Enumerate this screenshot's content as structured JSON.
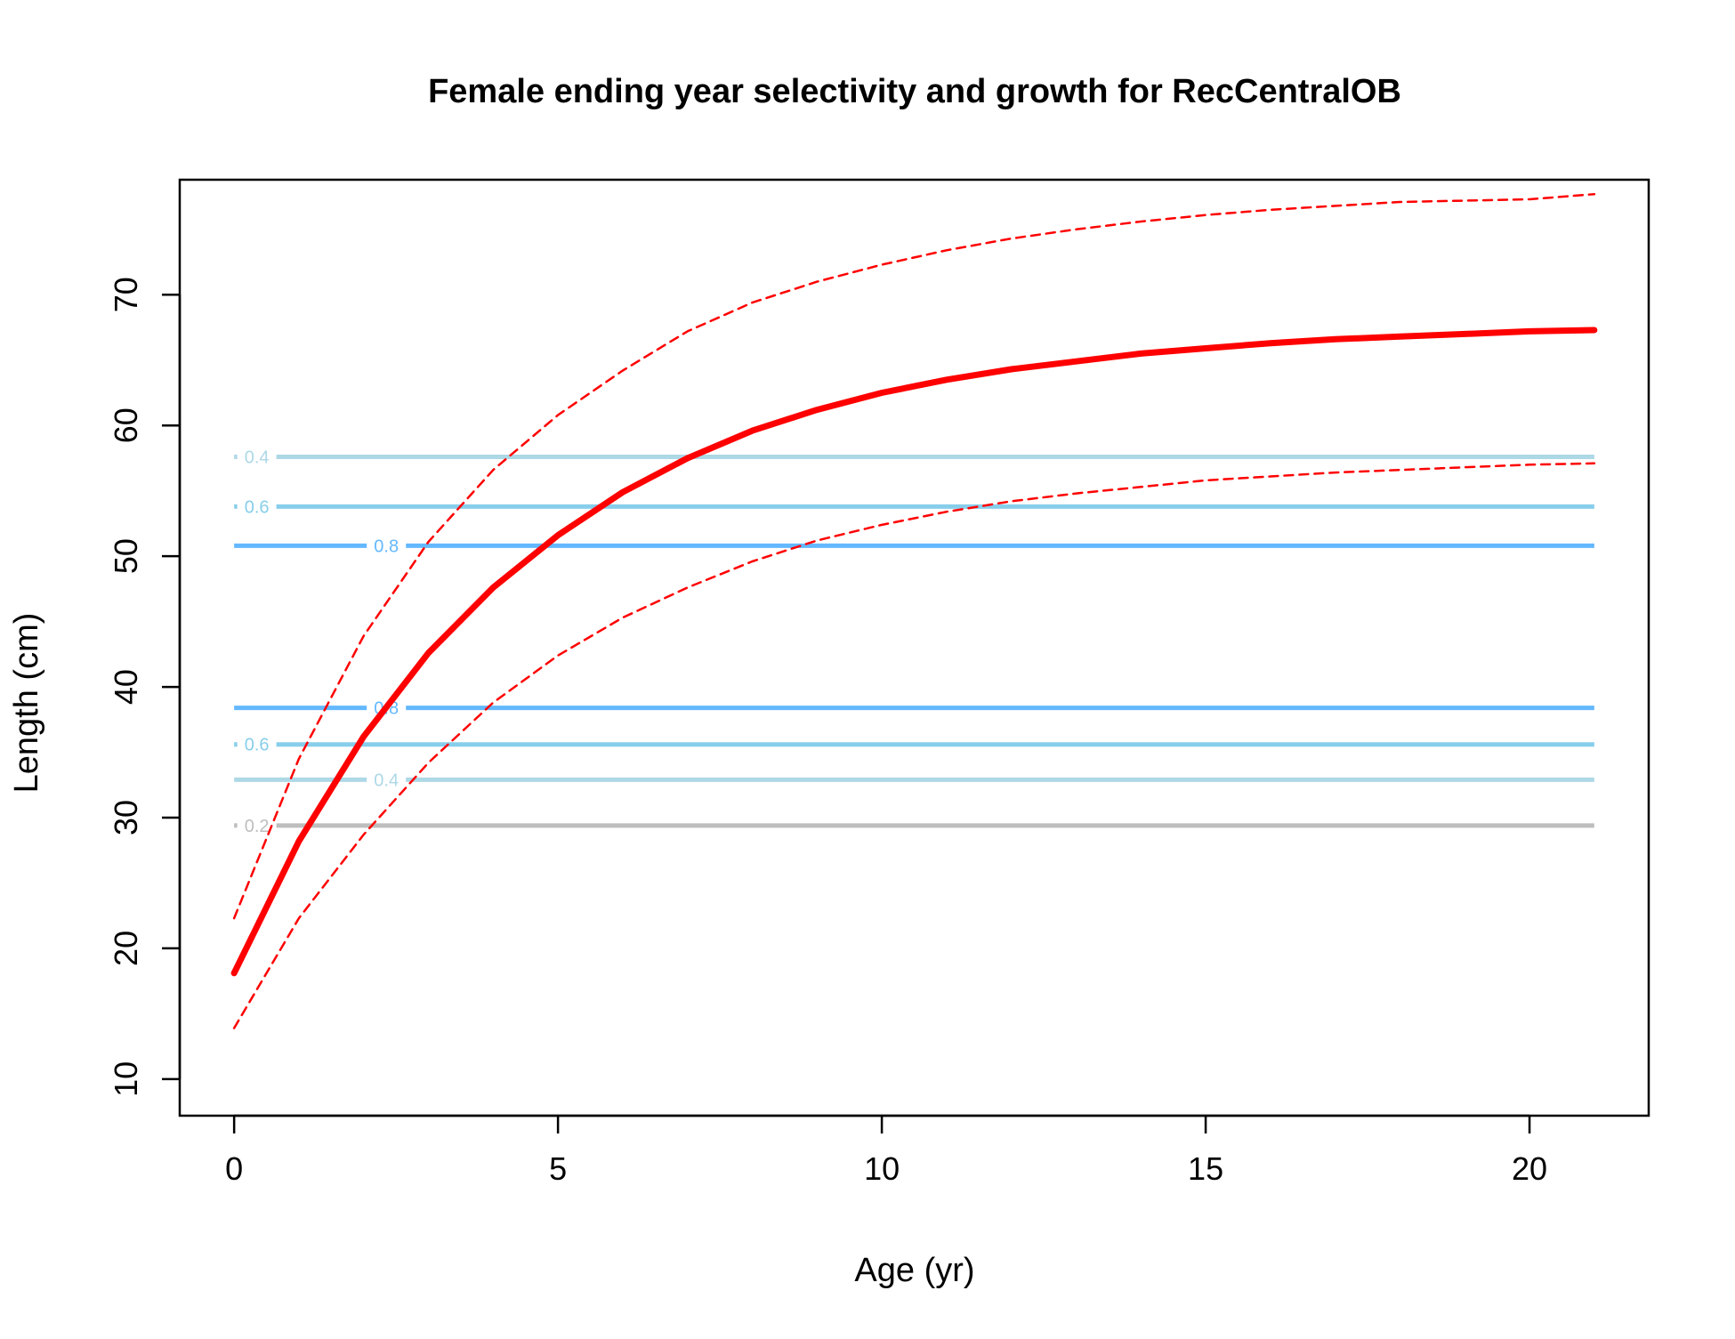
{
  "chart_data": {
    "type": "line",
    "title": "Female ending year selectivity and growth for RecCentralOB",
    "xlabel": "Age (yr)",
    "ylabel": "Length (cm)",
    "xlim": [
      -0.84,
      21.84
    ],
    "ylim": [
      7.2,
      78.8
    ],
    "xticks": [
      0,
      5,
      10,
      15,
      20
    ],
    "yticks": [
      10,
      20,
      30,
      40,
      50,
      60,
      70
    ],
    "grid": false,
    "colors": {
      "growth": "#ff0000",
      "contour_0.2": "#bebebe",
      "contour_0.4": "#add8e6",
      "contour_0.6": "#87ceeb",
      "contour_0.8": "#63b8ff"
    },
    "series": [
      {
        "role": "mean",
        "x": [
          0,
          1,
          2,
          3,
          4,
          5,
          6,
          7,
          8,
          9,
          10,
          11,
          12,
          13,
          14,
          15,
          16,
          17,
          18,
          19,
          20,
          21
        ],
        "values": [
          18.1,
          28.2,
          36.2,
          42.6,
          47.6,
          51.6,
          54.9,
          57.5,
          59.6,
          61.2,
          62.5,
          63.5,
          64.3,
          64.9,
          65.5,
          65.9,
          66.3,
          66.6,
          66.8,
          67.0,
          67.2,
          67.3
        ]
      },
      {
        "role": "upper",
        "x": [
          0,
          1,
          2,
          3,
          4,
          5,
          6,
          7,
          8,
          9,
          10,
          11,
          12,
          13,
          14,
          15,
          16,
          17,
          18,
          19,
          20,
          21
        ],
        "values": [
          22.3,
          34.5,
          43.9,
          51.1,
          56.6,
          60.8,
          64.2,
          67.2,
          69.4,
          71.0,
          72.3,
          73.4,
          74.3,
          75.0,
          75.6,
          76.1,
          76.5,
          76.8,
          77.1,
          77.2,
          77.3,
          77.7
        ]
      },
      {
        "role": "lower",
        "x": [
          0,
          1,
          2,
          3,
          4,
          5,
          6,
          7,
          8,
          9,
          10,
          11,
          12,
          13,
          14,
          15,
          16,
          17,
          18,
          19,
          20,
          21
        ],
        "values": [
          13.9,
          22.3,
          28.7,
          34.2,
          38.8,
          42.4,
          45.3,
          47.6,
          49.6,
          51.2,
          52.4,
          53.4,
          54.2,
          54.8,
          55.3,
          55.8,
          56.1,
          56.4,
          56.6,
          56.8,
          57.0,
          57.1
        ]
      }
    ],
    "contours": [
      {
        "label": "0.4",
        "y": 57.6,
        "label_x": 0.35,
        "color": "#add8e6"
      },
      {
        "label": "0.6",
        "y": 53.8,
        "label_x": 0.35,
        "color": "#87ceeb"
      },
      {
        "label": "0.8",
        "y": 50.8,
        "label_x": 2.35,
        "color": "#63b8ff"
      },
      {
        "label": "0.8",
        "y": 38.4,
        "label_x": 2.35,
        "color": "#63b8ff"
      },
      {
        "label": "0.6",
        "y": 35.6,
        "label_x": 0.35,
        "color": "#87ceeb"
      },
      {
        "label": "0.4",
        "y": 32.9,
        "label_x": 2.35,
        "color": "#add8e6"
      },
      {
        "label": "0.2",
        "y": 29.4,
        "label_x": 0.35,
        "color": "#bebebe"
      }
    ],
    "contour_x_range": [
      0,
      21
    ]
  }
}
